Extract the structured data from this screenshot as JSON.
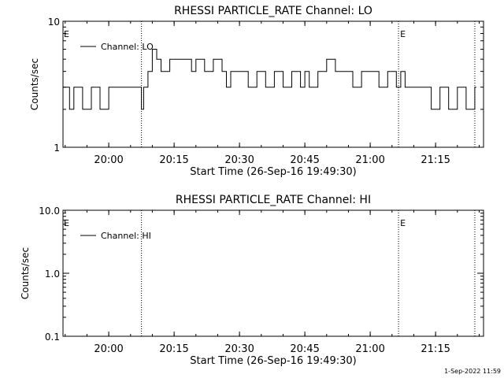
{
  "chart_data": [
    {
      "type": "line",
      "title": "RHESSI PARTICLE_RATE Channel: LO",
      "xlabel": "Start Time (26-Sep-16 19:49:30)",
      "ylabel": "Counts/sec",
      "yscale": "log",
      "xlim": [
        "19:49:30",
        "21:26:00"
      ],
      "ylim": [
        1,
        10
      ],
      "x_ticks": [
        "20:00",
        "20:15",
        "20:30",
        "20:45",
        "21:00",
        "21:15"
      ],
      "y_ticks": [
        "1",
        "10"
      ],
      "legend": {
        "entries": [
          "Channel: LO"
        ],
        "placement": "top-left"
      },
      "event_markers": [
        {
          "time": "20:07:30",
          "label": ""
        },
        {
          "time": "21:06:30",
          "label": "E"
        },
        {
          "time": "21:24:00",
          "label": ""
        }
      ],
      "start_marker_label": "E",
      "series": [
        {
          "name": "Channel: LO",
          "x": [
            "19:49:30",
            "19:51:00",
            "19:52:00",
            "19:54:00",
            "19:56:00",
            "19:58:00",
            "20:00:00",
            "20:02:00",
            "20:04:00",
            "20:06:00",
            "20:07:30",
            "20:08:00",
            "20:09:00",
            "20:10:00",
            "20:11:00",
            "20:12:00",
            "20:14:00",
            "20:16:00",
            "20:18:00",
            "20:19:00",
            "20:20:00",
            "20:22:00",
            "20:24:00",
            "20:26:00",
            "20:27:00",
            "20:28:00",
            "20:30:00",
            "20:32:00",
            "20:34:00",
            "20:36:00",
            "20:38:00",
            "20:40:00",
            "20:42:00",
            "20:44:00",
            "20:45:00",
            "20:46:00",
            "20:48:00",
            "20:50:00",
            "20:52:00",
            "20:54:00",
            "20:56:00",
            "20:58:00",
            "21:00:00",
            "21:02:00",
            "21:04:00",
            "21:06:00",
            "21:07:00",
            "21:08:00",
            "21:10:00",
            "21:12:00",
            "21:13:00",
            "21:14:00",
            "21:16:00",
            "21:18:00",
            "21:20:00",
            "21:22:00",
            "21:24:00"
          ],
          "values": [
            3,
            2,
            3,
            2,
            3,
            2,
            3,
            3,
            3,
            3,
            2,
            3,
            4,
            6,
            5,
            4,
            5,
            5,
            5,
            4,
            5,
            4,
            5,
            4,
            3,
            4,
            4,
            3,
            4,
            3,
            4,
            3,
            4,
            3,
            4,
            3,
            4,
            5,
            4,
            4,
            3,
            4,
            4,
            3,
            4,
            3,
            4,
            3,
            3,
            3,
            3,
            2,
            3,
            2,
            3,
            2,
            3
          ]
        }
      ]
    },
    {
      "type": "line",
      "title": "RHESSI PARTICLE_RATE Channel: HI",
      "xlabel": "Start Time (26-Sep-16 19:49:30)",
      "ylabel": "Counts/sec",
      "yscale": "log",
      "xlim": [
        "19:49:30",
        "21:26:00"
      ],
      "ylim": [
        0.1,
        10
      ],
      "x_ticks": [
        "20:00",
        "20:15",
        "20:30",
        "20:45",
        "21:00",
        "21:15"
      ],
      "y_ticks": [
        "0.1",
        "1.0",
        "10.0"
      ],
      "legend": {
        "entries": [
          "Channel: HI"
        ],
        "placement": "top-left"
      },
      "event_markers": [
        {
          "time": "20:07:30",
          "label": ""
        },
        {
          "time": "21:06:30",
          "label": "E"
        },
        {
          "time": "21:24:00",
          "label": ""
        }
      ],
      "start_marker_label": "E",
      "series": [
        {
          "name": "Channel: HI",
          "x": [],
          "values": []
        }
      ]
    }
  ],
  "footer": {
    "timestamp": "1-Sep-2022 11:59"
  }
}
